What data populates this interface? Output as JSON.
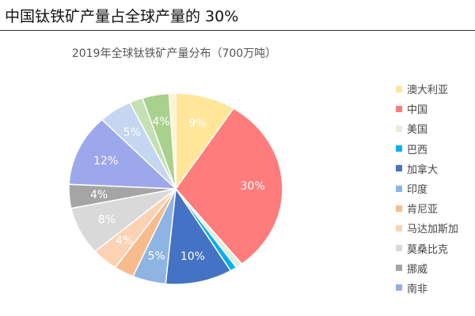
{
  "header": {
    "title": "中国钛铁矿产量占全球产量的 30%"
  },
  "chart_data": {
    "type": "pie",
    "title": "2019年全球钛铁矿产量分布（700万吨）",
    "legend_position": "right",
    "slices": [
      {
        "name": "澳大利亚",
        "value": 9,
        "label": "9%",
        "color": "#FFE699"
      },
      {
        "name": "中国",
        "value": 30,
        "label": "30%",
        "color": "#FF7C7C"
      },
      {
        "name": "美国",
        "value": 1,
        "label": "",
        "color": "#E2EFDA"
      },
      {
        "name": "巴西",
        "value": 1,
        "label": "",
        "color": "#00B0F0"
      },
      {
        "name": "加拿大",
        "value": 10,
        "label": "10%",
        "color": "#4472C4"
      },
      {
        "name": "印度",
        "value": 5,
        "label": "5%",
        "color": "#8EB4E3"
      },
      {
        "name": "肯尼亚",
        "value": 3,
        "label": "",
        "color": "#F8BC8C"
      },
      {
        "name": "马达加斯加",
        "value": 4,
        "label": "4%",
        "color": "#FBD3B4"
      },
      {
        "name": "莫桑比克",
        "value": 8,
        "label": "8%",
        "color": "#D9D9D9"
      },
      {
        "name": "挪威",
        "value": 4,
        "label": "4%",
        "color": "#A5A5A5"
      },
      {
        "name": "南非",
        "value": 12,
        "label": "12%",
        "color": "#9DA8EC"
      },
      {
        "name": "",
        "value": 5,
        "label": "5%",
        "color": "#C5D6F0"
      },
      {
        "name": "",
        "value": 2,
        "label": "",
        "color": "#C5E0B4"
      },
      {
        "name": "",
        "value": 4,
        "label": "4%",
        "color": "#A9D18E"
      },
      {
        "name": "",
        "value": 1,
        "label": "",
        "color": "#FFF2CC"
      }
    ]
  }
}
